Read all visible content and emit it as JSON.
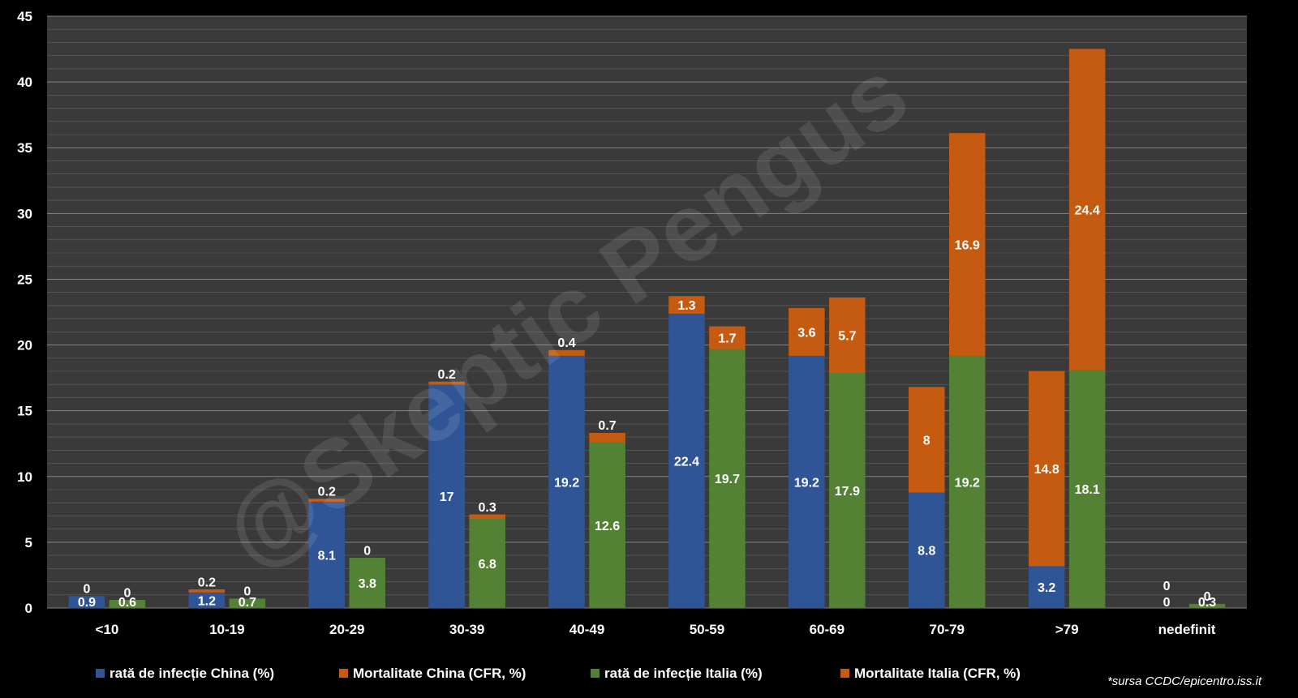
{
  "chart_data": {
    "type": "bar",
    "stacked": true,
    "categories": [
      "<10",
      "10-19",
      "20-29",
      "30-39",
      "40-49",
      "50-59",
      "60-69",
      "70-79",
      ">79",
      "nedefinit"
    ],
    "ylim": [
      0,
      45
    ],
    "yticks": [
      "0",
      "5",
      "10",
      "15",
      "20",
      "25",
      "30",
      "35",
      "40",
      "45"
    ],
    "grid": true,
    "legend_position": "bottom",
    "stacks": [
      {
        "name": "China",
        "series": [
          {
            "name": "rată de infecție China (%)",
            "color": "#2f5597",
            "values": [
              0.9,
              1.2,
              8.1,
              17,
              19.2,
              22.4,
              19.2,
              8.8,
              3.2,
              0
            ]
          },
          {
            "name": "Mortalitate China (CFR, %)",
            "color": "#c55a11",
            "values": [
              0,
              0.2,
              0.2,
              0.2,
              0.4,
              1.3,
              3.6,
              8,
              14.8,
              0
            ]
          }
        ]
      },
      {
        "name": "Italia",
        "series": [
          {
            "name": "rată de infecție Italia (%)",
            "color": "#548235",
            "values": [
              0.6,
              0.7,
              3.8,
              6.8,
              12.6,
              19.7,
              17.9,
              19.2,
              18.1,
              0.3
            ]
          },
          {
            "name": "Mortalitate Italia (CFR, %)",
            "color": "#c55a11",
            "values": [
              0,
              0,
              0,
              0.3,
              0.7,
              1.7,
              5.7,
              16.9,
              24.4,
              0
            ]
          }
        ]
      }
    ],
    "source_note": "*sursa CCDC/epicentro.iss.it",
    "watermark": "@Skeptic Pengus"
  },
  "colors": {
    "plot_background": "#3a3a3a",
    "page_background": "#000000",
    "gridline": "#8c8c8c"
  }
}
